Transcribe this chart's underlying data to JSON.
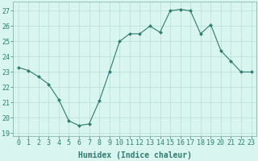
{
  "x": [
    0,
    1,
    2,
    3,
    4,
    5,
    6,
    7,
    8,
    9,
    10,
    11,
    12,
    13,
    14,
    15,
    16,
    17,
    18,
    19,
    20,
    21,
    22,
    23
  ],
  "y": [
    23.3,
    23.1,
    22.7,
    22.2,
    21.2,
    19.8,
    19.5,
    19.6,
    21.1,
    23.0,
    25.0,
    25.5,
    25.5,
    26.0,
    25.6,
    27.0,
    27.1,
    27.0,
    25.5,
    26.1,
    24.4,
    23.7,
    23.0,
    23.0
  ],
  "line_color": "#2e7d6e",
  "marker_color": "#2e7d6e",
  "bg_color": "#d8f5f0",
  "grid_color": "#b8ddd8",
  "xlabel": "Humidex (Indice chaleur)",
  "ylabel_ticks": [
    19,
    20,
    21,
    22,
    23,
    24,
    25,
    26,
    27
  ],
  "xlim": [
    -0.5,
    23.5
  ],
  "ylim": [
    18.8,
    27.6
  ],
  "xlabel_fontsize": 7.0,
  "tick_fontsize": 6.0
}
